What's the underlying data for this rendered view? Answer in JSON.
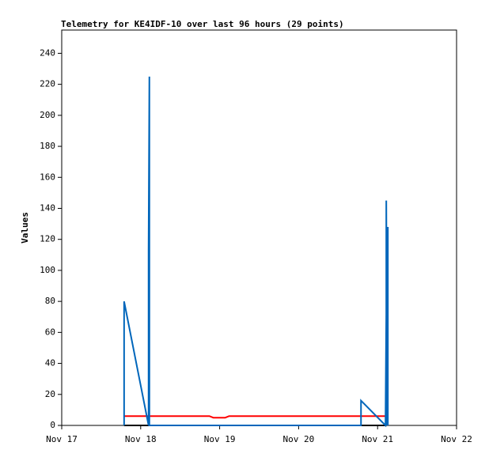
{
  "chart_data": {
    "type": "line",
    "title": "Telemetry for KE4IDF-10 over last 96 hours (29 points)",
    "y_label": "Values",
    "xlim": [
      17,
      22
    ],
    "xticks": [
      {
        "value": 17,
        "label": "Nov 17"
      },
      {
        "value": 18,
        "label": "Nov 18"
      },
      {
        "value": 19,
        "label": "Nov 19"
      },
      {
        "value": 20,
        "label": "Nov 20"
      },
      {
        "value": 21,
        "label": "Nov 21"
      },
      {
        "value": 22,
        "label": "Nov 22"
      }
    ],
    "ylim": [
      0,
      255
    ],
    "yticks": [
      0,
      20,
      40,
      60,
      80,
      100,
      120,
      140,
      160,
      180,
      200,
      220,
      240
    ],
    "series": [
      {
        "color": "#000000",
        "x": [
          17.79,
          21.11
        ],
        "values": [
          0,
          0
        ]
      },
      {
        "color": "#ff0000",
        "x": [
          17.79,
          18.87,
          18.92,
          19.07,
          19.12,
          21.11
        ],
        "values": [
          6,
          6,
          5,
          5,
          6,
          6
        ]
      },
      {
        "color": "#0066bb",
        "x": [
          17.79,
          17.79,
          18.1,
          18.1,
          18.11,
          18.11,
          20.79,
          20.79,
          21.1,
          21.11,
          21.11,
          21.12,
          21.13,
          21.13
        ],
        "values": [
          0,
          80,
          0,
          113,
          225,
          0,
          0,
          16,
          0,
          72,
          145,
          0,
          128,
          0
        ]
      }
    ]
  }
}
